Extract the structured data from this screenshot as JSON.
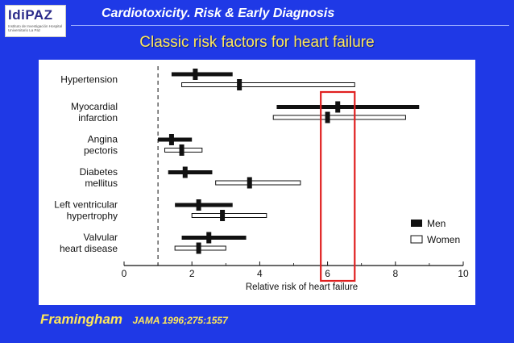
{
  "header": {
    "logo_text": "IdiPAZ",
    "logo_sub": "Instituto de Investigación Hospital Universitario La Paz",
    "title": "Cardiotoxicity. Risk & Early Diagnosis"
  },
  "subtitle": "Classic risk factors for heart failure",
  "footer": {
    "main": "Framingham",
    "ref": "JAMA 1996;275:1557"
  },
  "colors": {
    "background": "#1f39e6",
    "highlight_box": "#e02020",
    "title_text": "#ffe85a"
  },
  "chart_data": {
    "type": "forest-plot",
    "xlabel": "Relative risk of heart failure",
    "xlim": [
      0,
      10
    ],
    "xticks": [
      0,
      2,
      4,
      6,
      8,
      10
    ],
    "reference_line": 1,
    "highlight_range": [
      5.8,
      6.8
    ],
    "legend": [
      {
        "name": "Men",
        "style": "filled"
      },
      {
        "name": "Women",
        "style": "open"
      }
    ],
    "categories": [
      {
        "label": [
          "Hypertension"
        ],
        "men": {
          "est": 2.1,
          "lo": 1.4,
          "hi": 3.2
        },
        "women": {
          "est": 3.4,
          "lo": 1.7,
          "hi": 6.8
        }
      },
      {
        "label": [
          "Myocardial",
          "infarction"
        ],
        "men": {
          "est": 6.3,
          "lo": 4.5,
          "hi": 8.7
        },
        "women": {
          "est": 6.0,
          "lo": 4.4,
          "hi": 8.3
        }
      },
      {
        "label": [
          "Angina",
          "pectoris"
        ],
        "men": {
          "est": 1.4,
          "lo": 1.0,
          "hi": 2.0
        },
        "women": {
          "est": 1.7,
          "lo": 1.2,
          "hi": 2.3
        }
      },
      {
        "label": [
          "Diabetes",
          "mellitus"
        ],
        "men": {
          "est": 1.8,
          "lo": 1.3,
          "hi": 2.6
        },
        "women": {
          "est": 3.7,
          "lo": 2.7,
          "hi": 5.2
        }
      },
      {
        "label": [
          "Left ventricular",
          "hypertrophy"
        ],
        "men": {
          "est": 2.2,
          "lo": 1.5,
          "hi": 3.2
        },
        "women": {
          "est": 2.9,
          "lo": 2.0,
          "hi": 4.2
        }
      },
      {
        "label": [
          "Valvular",
          "heart disease"
        ],
        "men": {
          "est": 2.5,
          "lo": 1.7,
          "hi": 3.6
        },
        "women": {
          "est": 2.2,
          "lo": 1.5,
          "hi": 3.0
        }
      }
    ]
  }
}
